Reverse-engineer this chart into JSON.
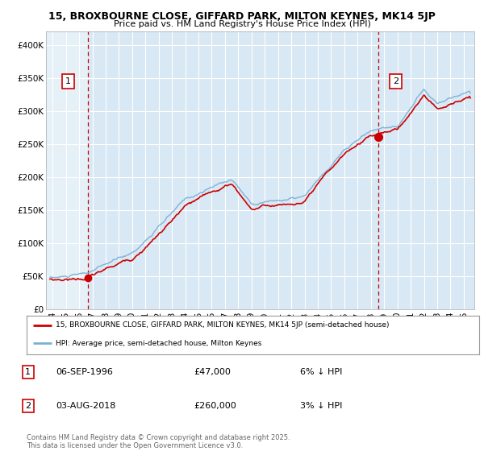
{
  "title1": "15, BROXBOURNE CLOSE, GIFFARD PARK, MILTON KEYNES, MK14 5JP",
  "title2": "Price paid vs. HM Land Registry's House Price Index (HPI)",
  "bg_color": "#d8e8f4",
  "grid_color": "#ffffff",
  "red_line_color": "#cc0000",
  "blue_line_color": "#7ab0d4",
  "marker1_date": 1996.67,
  "marker1_value": 47000,
  "marker2_date": 2018.58,
  "marker2_value": 260000,
  "vline1_date": 1996.67,
  "vline2_date": 2018.58,
  "annotation1": "1",
  "annotation2": "2",
  "ylim_min": 0,
  "ylim_max": 420000,
  "yticks": [
    0,
    50000,
    100000,
    150000,
    200000,
    250000,
    300000,
    350000,
    400000
  ],
  "ytick_labels": [
    "£0",
    "£50K",
    "£100K",
    "£150K",
    "£200K",
    "£250K",
    "£300K",
    "£350K",
    "£400K"
  ],
  "xlim_min": 1993.5,
  "xlim_max": 2025.8,
  "xtick_years": [
    1994,
    1995,
    1996,
    1997,
    1998,
    1999,
    2000,
    2001,
    2002,
    2003,
    2004,
    2005,
    2006,
    2007,
    2008,
    2009,
    2010,
    2011,
    2012,
    2013,
    2014,
    2015,
    2016,
    2017,
    2018,
    2019,
    2020,
    2021,
    2022,
    2023,
    2024,
    2025
  ],
  "legend_line1": "15, BROXBOURNE CLOSE, GIFFARD PARK, MILTON KEYNES, MK14 5JP (semi-detached house)",
  "legend_line2": "HPI: Average price, semi-detached house, Milton Keynes",
  "point1_label": "1",
  "point1_date_str": "06-SEP-1996",
  "point1_price": "£47,000",
  "point1_hpi": "6% ↓ HPI",
  "point2_label": "2",
  "point2_date_str": "03-AUG-2018",
  "point2_price": "£260,000",
  "point2_hpi": "3% ↓ HPI",
  "footer": "Contains HM Land Registry data © Crown copyright and database right 2025.\nThis data is licensed under the Open Government Licence v3.0.",
  "hatch_xlim": 1996.67
}
